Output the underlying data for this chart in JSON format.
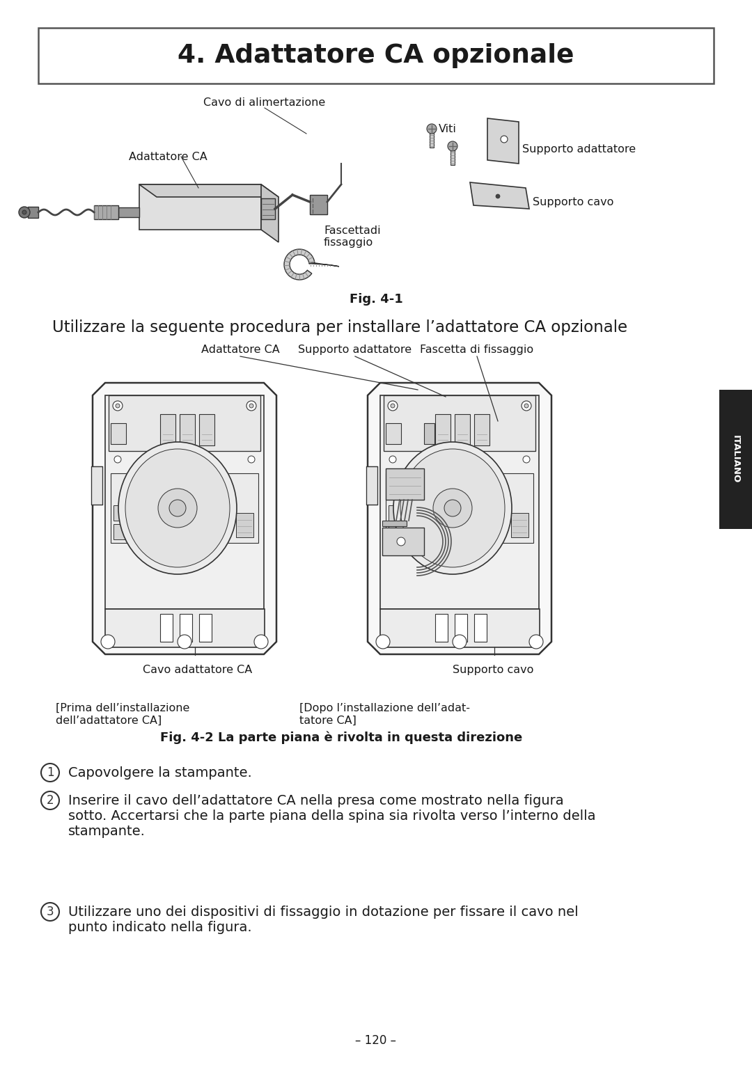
{
  "title": "4. Adattatore CA opzionale",
  "fig1_caption": "Fig. 4-1",
  "fig2_caption": "Fig. 4-2 La parte piana è rivolta in questa direzione",
  "subtitle": "Utilizzare la seguente procedura per installare l’adattatore CA opzionale",
  "fig1_labels": {
    "cavo_alimentazione": "Cavo di alimertazione",
    "adattatore_ca": "Adattatore CA",
    "viti": "Viti",
    "fascettadi_fissaggio": "Fascettadi\nfissaggio",
    "supporto_adattatore": "Supporto adattatore",
    "supporto_cavo": "Supporto cavo"
  },
  "fig2_labels": {
    "adattatore_ca": "Adattatore CA",
    "supporto_adattatore": "Supporto adattatore",
    "fascetta_fissaggio": "Fascetta di fissaggio",
    "cavo_adattatore_ca": "Cavo adattatore CA",
    "supporto_cavo": "Supporto cavo",
    "prima_installazione": "[Prima dell’installazione\ndell’adattatore CA]",
    "dopo_installazione": "[Dopo l’installazione dell’adat-\ntatore CA]"
  },
  "steps": [
    "Capovolgere la stampante.",
    "Inserire il cavo dell’adattatore CA nella presa come mostrato nella figura\nsotto. Accertarsi che la parte piana della spina sia rivolta verso l’interno della\nstampante.",
    "Utilizzare uno dei dispositivi di fissaggio in dotazione per fissare il cavo nel\npunto indicato nella figura."
  ],
  "page_number": "– 120 –",
  "italiano_tab": "ITALIANO",
  "bg_color": "#ffffff",
  "text_color": "#1a1a1a",
  "border_color": "#666666",
  "tab_bg": "#222222",
  "tab_text": "#ffffff"
}
